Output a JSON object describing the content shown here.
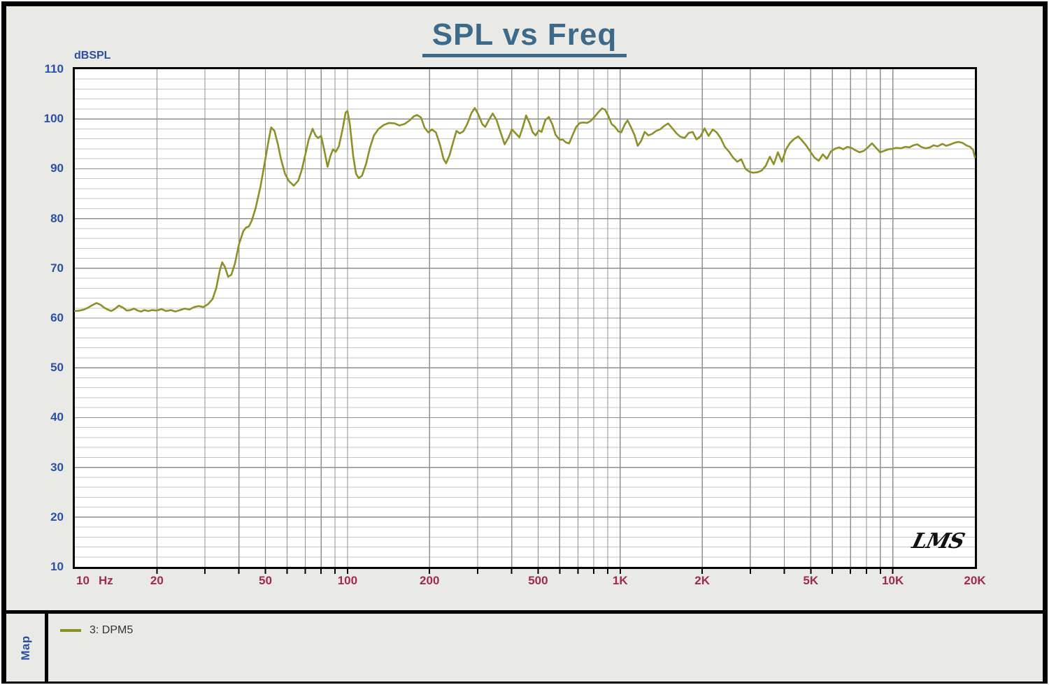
{
  "header": {
    "title": "SPL vs Freq"
  },
  "chart_data": {
    "type": "line",
    "title": "SPL vs Freq",
    "ylabel": "dBSPL",
    "x_unit": "Hz",
    "x_scale": "log",
    "xlim": [
      10,
      20000
    ],
    "ylim": [
      10,
      110
    ],
    "y_major_step": 10,
    "y_minor_step": 2,
    "grid": true,
    "legend_position": "bottom",
    "watermark": "LMS",
    "y_ticks": [
      110,
      100,
      90,
      80,
      70,
      60,
      50,
      40,
      30,
      20,
      10
    ],
    "x_ticks": [
      {
        "value": 10,
        "label": "10"
      },
      {
        "value": 20,
        "label": "20"
      },
      {
        "value": 50,
        "label": "50"
      },
      {
        "value": 100,
        "label": "100"
      },
      {
        "value": 200,
        "label": "200"
      },
      {
        "value": 500,
        "label": "500"
      },
      {
        "value": 1000,
        "label": "1K"
      },
      {
        "value": 2000,
        "label": "2K"
      },
      {
        "value": 5000,
        "label": "5K"
      },
      {
        "value": 10000,
        "label": "10K"
      },
      {
        "value": 20000,
        "label": "20K"
      }
    ],
    "series": [
      {
        "name": "3: DPM5",
        "color": "#8f8f28",
        "points": [
          [
            10,
            61.4
          ],
          [
            10.4,
            61.5
          ],
          [
            10.8,
            61.7
          ],
          [
            11.2,
            62.1
          ],
          [
            11.6,
            62.6
          ],
          [
            12,
            63
          ],
          [
            12.4,
            62.7
          ],
          [
            12.8,
            62.1
          ],
          [
            13.2,
            61.7
          ],
          [
            13.6,
            61.4
          ],
          [
            14,
            61.8
          ],
          [
            14.5,
            62.5
          ],
          [
            15,
            62.1
          ],
          [
            15.5,
            61.5
          ],
          [
            16,
            61.6
          ],
          [
            16.5,
            61.9
          ],
          [
            17,
            61.5
          ],
          [
            17.5,
            61.3
          ],
          [
            18,
            61.6
          ],
          [
            18.6,
            61.4
          ],
          [
            19.2,
            61.6
          ],
          [
            20,
            61.5
          ],
          [
            20.8,
            61.8
          ],
          [
            21.6,
            61.4
          ],
          [
            22.5,
            61.6
          ],
          [
            23.4,
            61.3
          ],
          [
            24.3,
            61.6
          ],
          [
            25.3,
            61.9
          ],
          [
            26.3,
            61.7
          ],
          [
            27.4,
            62.2
          ],
          [
            28.5,
            62.4
          ],
          [
            29.6,
            62.2
          ],
          [
            30.8,
            62.8
          ],
          [
            32,
            63.8
          ],
          [
            33,
            66
          ],
          [
            34,
            69.5
          ],
          [
            34.7,
            71.2
          ],
          [
            35.5,
            70.3
          ],
          [
            36.5,
            68.3
          ],
          [
            37.5,
            68.7
          ],
          [
            38.6,
            70.8
          ],
          [
            40,
            74.8
          ],
          [
            41.5,
            77.5
          ],
          [
            42.5,
            78.2
          ],
          [
            43.5,
            78.4
          ],
          [
            44.5,
            79.5
          ],
          [
            46,
            82
          ],
          [
            48,
            86.5
          ],
          [
            50,
            92
          ],
          [
            51.5,
            96
          ],
          [
            52.5,
            98.3
          ],
          [
            54,
            97.6
          ],
          [
            55.5,
            95
          ],
          [
            57,
            92
          ],
          [
            59,
            89
          ],
          [
            61,
            87.5
          ],
          [
            63.5,
            86.6
          ],
          [
            66,
            87.6
          ],
          [
            68,
            89.8
          ],
          [
            70,
            92.8
          ],
          [
            72,
            95.8
          ],
          [
            74.5,
            98
          ],
          [
            76.5,
            96.6
          ],
          [
            78,
            96.2
          ],
          [
            80,
            96.6
          ],
          [
            82,
            94
          ],
          [
            84.5,
            90.4
          ],
          [
            86.5,
            92.5
          ],
          [
            88.5,
            93.9
          ],
          [
            90.5,
            93.4
          ],
          [
            93,
            94.5
          ],
          [
            96,
            98
          ],
          [
            98.5,
            101.3
          ],
          [
            100,
            101.6
          ],
          [
            102,
            99
          ],
          [
            105,
            92.5
          ],
          [
            107.5,
            89
          ],
          [
            110,
            88.1
          ],
          [
            113,
            88.6
          ],
          [
            117,
            91
          ],
          [
            121,
            94.3
          ],
          [
            125,
            96.7
          ],
          [
            130,
            98
          ],
          [
            136,
            98.8
          ],
          [
            142,
            99.2
          ],
          [
            149,
            99.1
          ],
          [
            155,
            98.7
          ],
          [
            162,
            99
          ],
          [
            169,
            99.7
          ],
          [
            175,
            100.5
          ],
          [
            180,
            100.8
          ],
          [
            186,
            100.3
          ],
          [
            192,
            98.2
          ],
          [
            198,
            97.3
          ],
          [
            204,
            97.9
          ],
          [
            211,
            97.3
          ],
          [
            218,
            95
          ],
          [
            225,
            92
          ],
          [
            230,
            91.1
          ],
          [
            237,
            92.8
          ],
          [
            244,
            95.3
          ],
          [
            251,
            97.6
          ],
          [
            258,
            97.1
          ],
          [
            266,
            97.5
          ],
          [
            275,
            99
          ],
          [
            285,
            101.2
          ],
          [
            293,
            102.2
          ],
          [
            302,
            100.9
          ],
          [
            312,
            99
          ],
          [
            320,
            98.4
          ],
          [
            330,
            99.8
          ],
          [
            341,
            101.1
          ],
          [
            352,
            99.8
          ],
          [
            364,
            97.4
          ],
          [
            377,
            94.9
          ],
          [
            390,
            96.3
          ],
          [
            401,
            97.9
          ],
          [
            414,
            97.1
          ],
          [
            427,
            96.3
          ],
          [
            440,
            98.4
          ],
          [
            452,
            100.7
          ],
          [
            465,
            99.2
          ],
          [
            478,
            97.3
          ],
          [
            490,
            96.7
          ],
          [
            503,
            97.7
          ],
          [
            515,
            97.4
          ],
          [
            532,
            99.8
          ],
          [
            548,
            100.4
          ],
          [
            565,
            98.8
          ],
          [
            580,
            96.8
          ],
          [
            600,
            95.8
          ],
          [
            615,
            95.9
          ],
          [
            632,
            95.3
          ],
          [
            650,
            95.1
          ],
          [
            670,
            96.8
          ],
          [
            690,
            98.4
          ],
          [
            712,
            99.2
          ],
          [
            734,
            99.3
          ],
          [
            757,
            99.2
          ],
          [
            780,
            99.6
          ],
          [
            805,
            100.4
          ],
          [
            830,
            101.3
          ],
          [
            858,
            102.1
          ],
          [
            880,
            101.9
          ],
          [
            905,
            100.6
          ],
          [
            930,
            99
          ],
          [
            958,
            98.4
          ],
          [
            985,
            97.5
          ],
          [
            1010,
            97.3
          ],
          [
            1040,
            98.9
          ],
          [
            1065,
            99.7
          ],
          [
            1095,
            98.4
          ],
          [
            1130,
            96.7
          ],
          [
            1160,
            94.6
          ],
          [
            1195,
            95.6
          ],
          [
            1230,
            97.4
          ],
          [
            1270,
            96.7
          ],
          [
            1310,
            97
          ],
          [
            1355,
            97.6
          ],
          [
            1400,
            97.9
          ],
          [
            1450,
            98.6
          ],
          [
            1500,
            99.1
          ],
          [
            1555,
            98.1
          ],
          [
            1610,
            97.1
          ],
          [
            1665,
            96.4
          ],
          [
            1725,
            96.2
          ],
          [
            1785,
            97.2
          ],
          [
            1845,
            97.4
          ],
          [
            1905,
            95.9
          ],
          [
            1970,
            96.5
          ],
          [
            2040,
            98.1
          ],
          [
            2110,
            96.6
          ],
          [
            2185,
            97.9
          ],
          [
            2260,
            97.3
          ],
          [
            2340,
            96.1
          ],
          [
            2420,
            94.4
          ],
          [
            2510,
            93.4
          ],
          [
            2600,
            92.2
          ],
          [
            2690,
            91.4
          ],
          [
            2780,
            91.9
          ],
          [
            2880,
            90
          ],
          [
            2980,
            89.4
          ],
          [
            3080,
            89.2
          ],
          [
            3190,
            89.3
          ],
          [
            3300,
            89.6
          ],
          [
            3420,
            90.6
          ],
          [
            3540,
            92.4
          ],
          [
            3660,
            90.9
          ],
          [
            3790,
            93.3
          ],
          [
            3920,
            91.4
          ],
          [
            4060,
            93.9
          ],
          [
            4200,
            95.2
          ],
          [
            4350,
            96
          ],
          [
            4500,
            96.5
          ],
          [
            4660,
            95.6
          ],
          [
            4820,
            94.6
          ],
          [
            4990,
            93.4
          ],
          [
            5170,
            92.2
          ],
          [
            5350,
            91.6
          ],
          [
            5540,
            92.9
          ],
          [
            5730,
            92
          ],
          [
            5930,
            93.5
          ],
          [
            6140,
            94
          ],
          [
            6360,
            94.3
          ],
          [
            6580,
            93.9
          ],
          [
            6810,
            94.4
          ],
          [
            7050,
            94.2
          ],
          [
            7300,
            93.7
          ],
          [
            7560,
            93.3
          ],
          [
            7830,
            93.6
          ],
          [
            8100,
            94.3
          ],
          [
            8390,
            95.1
          ],
          [
            8680,
            94.2
          ],
          [
            8990,
            93.3
          ],
          [
            9300,
            93.6
          ],
          [
            9630,
            93.9
          ],
          [
            9970,
            94
          ],
          [
            10300,
            94.2
          ],
          [
            10700,
            94.1
          ],
          [
            11100,
            94.4
          ],
          [
            11500,
            94.3
          ],
          [
            11900,
            94.7
          ],
          [
            12300,
            94.9
          ],
          [
            12700,
            94.4
          ],
          [
            13200,
            94.1
          ],
          [
            13700,
            94.3
          ],
          [
            14100,
            94.7
          ],
          [
            14600,
            94.5
          ],
          [
            15200,
            95
          ],
          [
            15700,
            94.6
          ],
          [
            16300,
            94.9
          ],
          [
            16800,
            95.2
          ],
          [
            17400,
            95.4
          ],
          [
            18000,
            95.2
          ],
          [
            18600,
            94.7
          ],
          [
            19200,
            94.4
          ],
          [
            19700,
            93.8
          ],
          [
            20000,
            92.3
          ]
        ]
      }
    ]
  },
  "footer": {
    "tab_label": "Map",
    "legend_items": [
      {
        "label": "3: DPM5",
        "color": "#8f8f28"
      }
    ]
  },
  "colors": {
    "frame": "#000000",
    "panel_bg": "#e9e9e5",
    "plot_bg": "#ffffff",
    "title": "#3d6a88",
    "y_label": "#2b4fa3",
    "x_label": "#a02a50",
    "grid_major": "#8f8f8f",
    "grid_minor": "#c6c6c6",
    "curve": "#8f8f28",
    "signature": "#111111"
  }
}
